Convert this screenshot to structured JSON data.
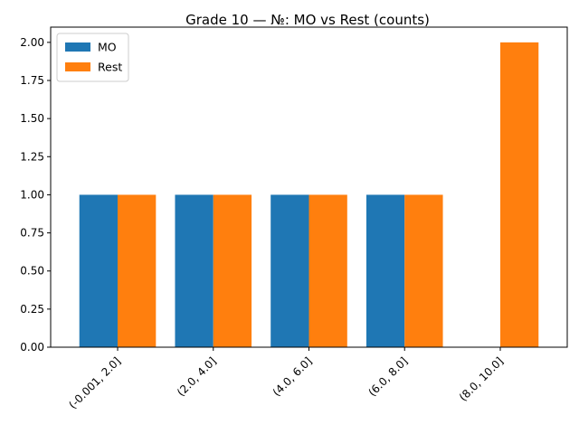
{
  "chart_data": {
    "type": "bar",
    "title": "Grade 10 — №: MO vs Rest (counts)",
    "xlabel": "",
    "ylabel": "",
    "categories": [
      "(-0.001, 2.0]",
      "(2.0, 4.0]",
      "(4.0, 6.0]",
      "(6.0, 8.0]",
      "(8.0, 10.0]"
    ],
    "series": [
      {
        "name": "MO",
        "color": "#1f77b4",
        "values": [
          1,
          1,
          1,
          1,
          0
        ]
      },
      {
        "name": "Rest",
        "color": "#ff7f0e",
        "values": [
          1,
          1,
          1,
          1,
          2
        ]
      }
    ],
    "ylim": [
      0,
      2.1
    ],
    "yticks": [
      "0.00",
      "0.25",
      "0.50",
      "0.75",
      "1.00",
      "1.25",
      "1.50",
      "1.75",
      "2.00"
    ],
    "legend": "top-left",
    "grid": false
  }
}
